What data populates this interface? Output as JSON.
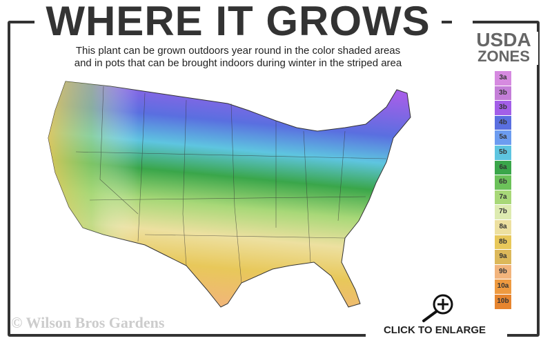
{
  "header": {
    "title": "WHERE IT GROWS",
    "subtitle_line1": "This plant can be grown outdoors year round in the color shaded areas",
    "subtitle_line2": "and in pots that can be brought indoors during winter in the striped area"
  },
  "legend": {
    "title_line1": "USDA",
    "title_line2": "ZONES",
    "zones": [
      {
        "label": "3a",
        "color": "#d68ae0"
      },
      {
        "label": "3b",
        "color": "#c47ed8"
      },
      {
        "label": "3b",
        "color": "#a35fe8"
      },
      {
        "label": "4b",
        "color": "#5a6fe0"
      },
      {
        "label": "5a",
        "color": "#6c9cf0"
      },
      {
        "label": "5b",
        "color": "#5ec5e0"
      },
      {
        "label": "6a",
        "color": "#3aa64a"
      },
      {
        "label": "6b",
        "color": "#6cc25a"
      },
      {
        "label": "7a",
        "color": "#a8d878"
      },
      {
        "label": "7b",
        "color": "#ddebb0"
      },
      {
        "label": "8a",
        "color": "#ede0a0"
      },
      {
        "label": "8b",
        "color": "#e8c85a"
      },
      {
        "label": "9a",
        "color": "#dcb85a"
      },
      {
        "label": "9b",
        "color": "#f2b47c"
      },
      {
        "label": "10a",
        "color": "#ee9a40"
      },
      {
        "label": "10b",
        "color": "#e6852f"
      }
    ]
  },
  "footer": {
    "copyright": "© Wilson Bros Gardens",
    "enlarge_label": "CLICK TO ENLARGE"
  },
  "icons": {
    "enlarge": "magnifier-plus-icon"
  }
}
